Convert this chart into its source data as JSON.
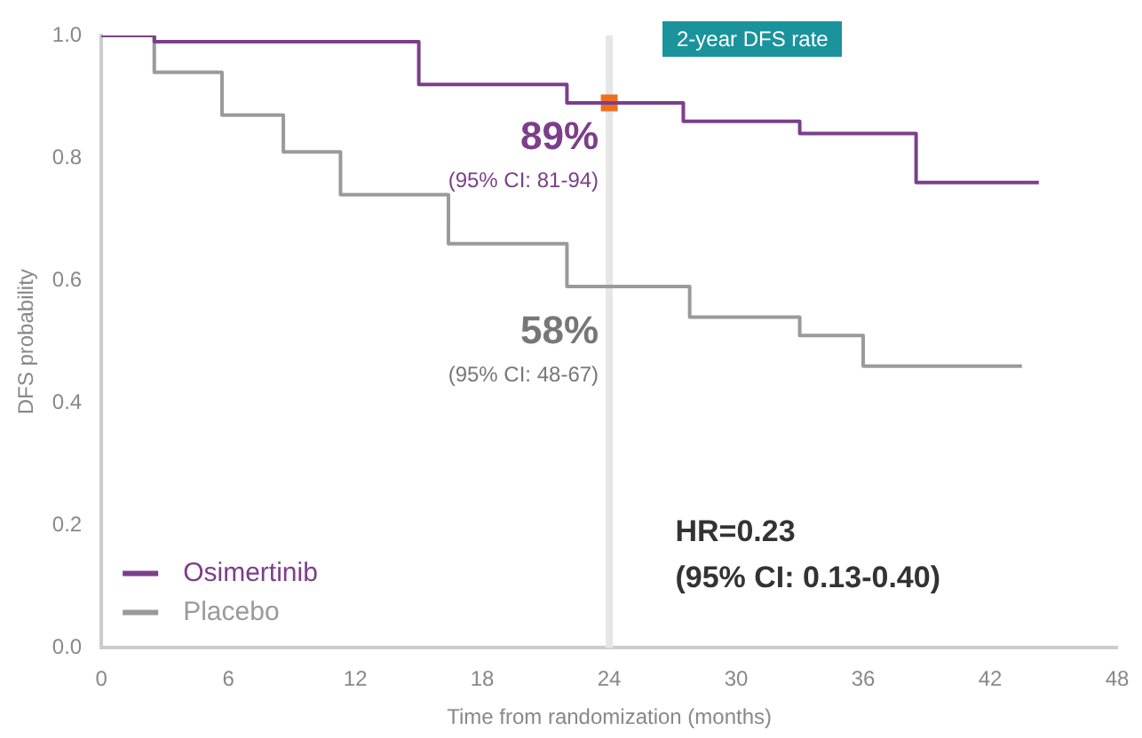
{
  "chart_data": {
    "type": "step",
    "title": "2-year DFS rate",
    "xlabel": "Time from randomization (months)",
    "ylabel": "DFS probability",
    "xlim": [
      0,
      48
    ],
    "xticks": [
      0,
      6,
      12,
      18,
      24,
      30,
      36,
      42,
      48
    ],
    "ylim": [
      0,
      1
    ],
    "yticks": [
      {
        "value": 0,
        "label": "0.0"
      },
      {
        "value": 0.2,
        "label": "0.2"
      },
      {
        "value": 0.4,
        "label": "0.4"
      },
      {
        "value": 0.6,
        "label": "0.6"
      },
      {
        "value": 0.8,
        "label": "0.8"
      },
      {
        "value": 1,
        "label": "1.0"
      }
    ],
    "grid": false,
    "legend": "bottom left",
    "marker": "none",
    "series": [
      {
        "name": "Osimertinib",
        "color": "#7b3f8a",
        "x": [
          0,
          2.5,
          15,
          22,
          27.5,
          33,
          38.5,
          44.3
        ],
        "values": [
          1,
          0.99,
          0.92,
          0.89,
          0.86,
          0.84,
          0.76,
          0.76
        ]
      },
      {
        "name": "Placebo",
        "color": "#9a9a9a",
        "x": [
          0,
          2.5,
          5.7,
          8.6,
          11.3,
          16.4,
          22,
          27.8,
          33,
          36,
          43.5
        ],
        "values": [
          1,
          0.94,
          0.87,
          0.81,
          0.74,
          0.66,
          0.59,
          0.54,
          0.51,
          0.46,
          0.46
        ]
      },
      {
        "type": "scatter",
        "color": "#f07020",
        "marker": "rect",
        "x": [
          24
        ],
        "values": [
          0.89
        ]
      }
    ],
    "ref_lines": [
      {
        "axis": "x",
        "value": 24,
        "color": "#e6e6e6"
      }
    ],
    "annotations": [
      "89%",
      "(95% CI: 81-94)",
      "58%",
      "(95% CI: 48-67)",
      "HR=0.23",
      "(95% CI: 0.13-0.40)"
    ]
  }
}
